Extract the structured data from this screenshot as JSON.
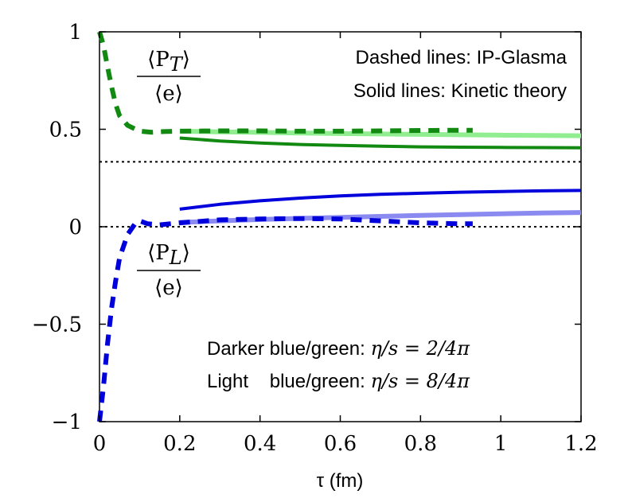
{
  "chart_data": {
    "type": "line",
    "xlabel": "τ (fm)",
    "xlim": [
      0,
      1.2
    ],
    "ylim": [
      -1,
      1
    ],
    "x_ticks": [
      0,
      0.2,
      0.4,
      0.6,
      0.8,
      1,
      1.2
    ],
    "x_tick_labels": [
      "0",
      "0.2",
      "0.4",
      "0.6",
      "0.8",
      "1",
      "1.2"
    ],
    "y_ticks": [
      -1,
      -0.5,
      0,
      0.5,
      1
    ],
    "y_tick_labels": [
      "−1",
      "−0.5",
      "0",
      "0.5",
      "1"
    ],
    "annotations": {
      "legend_dashed": "Dashed lines: IP-Glasma",
      "legend_solid": "Solid lines: Kinetic theory",
      "darker_label": "Darker blue/green: ",
      "darker_math": "η/s = 2/4π",
      "light_label": "Light    blue/green: ",
      "light_math": "η/s = 8/4π",
      "pt_num": "⟨P",
      "pt_sub": "T",
      "pt_close": "⟩",
      "pt_den": "⟨e⟩",
      "pl_num": "⟨P",
      "pl_sub": "L",
      "pl_close": "⟩",
      "pl_den": "⟨e⟩"
    },
    "reference_lines": [
      {
        "y": 0.333,
        "style": "dotted",
        "color": "#000000"
      },
      {
        "y": 0,
        "style": "dotted",
        "color": "#000000"
      }
    ],
    "series": [
      {
        "style": "solid",
        "color": "#90ee90",
        "width": 6,
        "x": [
          0.2,
          0.3,
          0.4,
          0.5,
          0.6,
          0.7,
          0.8,
          0.9,
          1.0,
          1.1,
          1.2
        ],
        "y": [
          0.49,
          0.487,
          0.484,
          0.481,
          0.478,
          0.476,
          0.474,
          0.472,
          0.47,
          0.468,
          0.467
        ]
      },
      {
        "style": "solid",
        "color": "#128a12",
        "width": 4,
        "x": [
          0.2,
          0.3,
          0.4,
          0.5,
          0.6,
          0.7,
          0.8,
          0.9,
          1.0,
          1.1,
          1.2
        ],
        "y": [
          0.455,
          0.44,
          0.43,
          0.422,
          0.417,
          0.413,
          0.41,
          0.408,
          0.407,
          0.406,
          0.405
        ]
      },
      {
        "style": "solid",
        "color": "#0000dd",
        "width": 4,
        "x": [
          0.2,
          0.3,
          0.4,
          0.5,
          0.6,
          0.7,
          0.8,
          0.9,
          1.0,
          1.1,
          1.2
        ],
        "y": [
          0.09,
          0.115,
          0.133,
          0.147,
          0.158,
          0.166,
          0.172,
          0.177,
          0.181,
          0.184,
          0.186
        ]
      },
      {
        "style": "solid",
        "color": "#8a8af0",
        "width": 6,
        "x": [
          0.2,
          0.3,
          0.4,
          0.5,
          0.6,
          0.7,
          0.8,
          0.9,
          1.0,
          1.1,
          1.2
        ],
        "y": [
          0.022,
          0.03,
          0.037,
          0.043,
          0.048,
          0.053,
          0.058,
          0.062,
          0.066,
          0.07,
          0.073
        ]
      },
      {
        "style": "dashed",
        "color": "#128a12",
        "width": 6,
        "x": [
          0.0,
          0.01,
          0.02,
          0.03,
          0.04,
          0.05,
          0.07,
          0.1,
          0.13,
          0.16,
          0.2,
          0.3,
          0.4,
          0.5,
          0.6,
          0.7,
          0.8,
          0.9,
          0.93
        ],
        "y": [
          1.0,
          0.93,
          0.82,
          0.72,
          0.63,
          0.57,
          0.52,
          0.49,
          0.485,
          0.488,
          0.49,
          0.492,
          0.492,
          0.49,
          0.49,
          0.492,
          0.494,
          0.495,
          0.495
        ]
      },
      {
        "style": "dashed",
        "color": "#0000dd",
        "width": 6,
        "x": [
          0.0,
          0.01,
          0.02,
          0.03,
          0.04,
          0.05,
          0.07,
          0.09,
          0.1,
          0.12,
          0.15,
          0.2,
          0.3,
          0.4,
          0.5,
          0.6,
          0.7,
          0.8,
          0.9,
          0.93
        ],
        "y": [
          -1.0,
          -0.82,
          -0.6,
          -0.42,
          -0.28,
          -0.16,
          -0.04,
          0.02,
          0.03,
          0.015,
          0.01,
          0.02,
          0.035,
          0.04,
          0.042,
          0.04,
          0.03,
          0.02,
          0.015,
          0.015
        ]
      }
    ]
  }
}
